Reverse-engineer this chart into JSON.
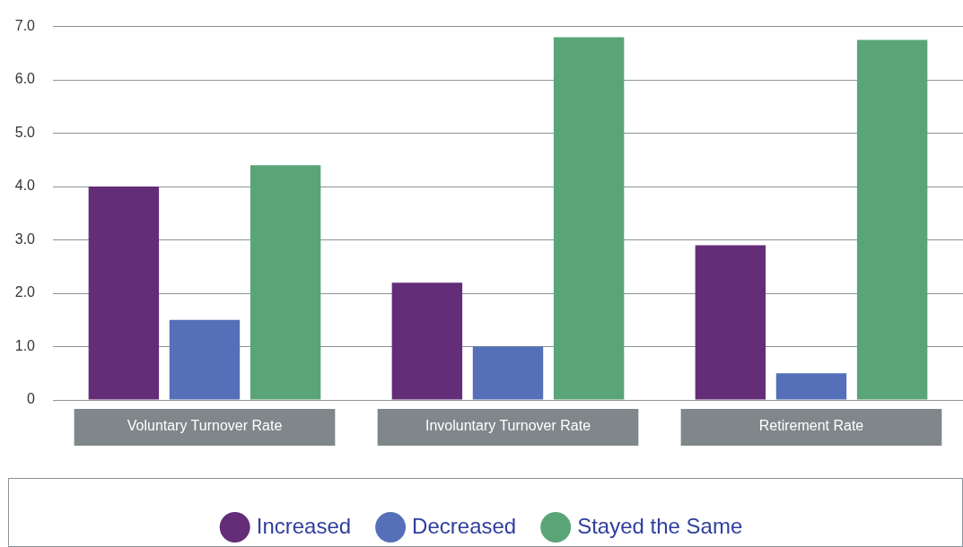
{
  "chart_data": {
    "type": "bar",
    "categories": [
      "Voluntary Turnover Rate",
      "Involuntary Turnover Rate",
      "Retirement Rate"
    ],
    "series": [
      {
        "name": "Increased",
        "color": "#642d78",
        "values": [
          4.0,
          2.2,
          2.9
        ]
      },
      {
        "name": "Decreased",
        "color": "#5570b9",
        "values": [
          1.5,
          1.0,
          0.5
        ]
      },
      {
        "name": "Stayed the Same",
        "color": "#5aa578",
        "values": [
          4.4,
          6.8,
          6.75
        ]
      }
    ],
    "ylim": [
      0,
      7
    ],
    "yticks": [
      0,
      {
        "value": 1,
        "label": "1.0"
      },
      {
        "value": 2,
        "label": "2.0"
      },
      {
        "value": 3,
        "label": "3.0"
      },
      {
        "value": 4,
        "label": "4.0"
      },
      {
        "value": 5,
        "label": "5.0"
      },
      {
        "value": 6,
        "label": "6.0"
      },
      {
        "value": 7,
        "label": "7.0"
      }
    ],
    "grid": "y",
    "legend": "bottom"
  }
}
